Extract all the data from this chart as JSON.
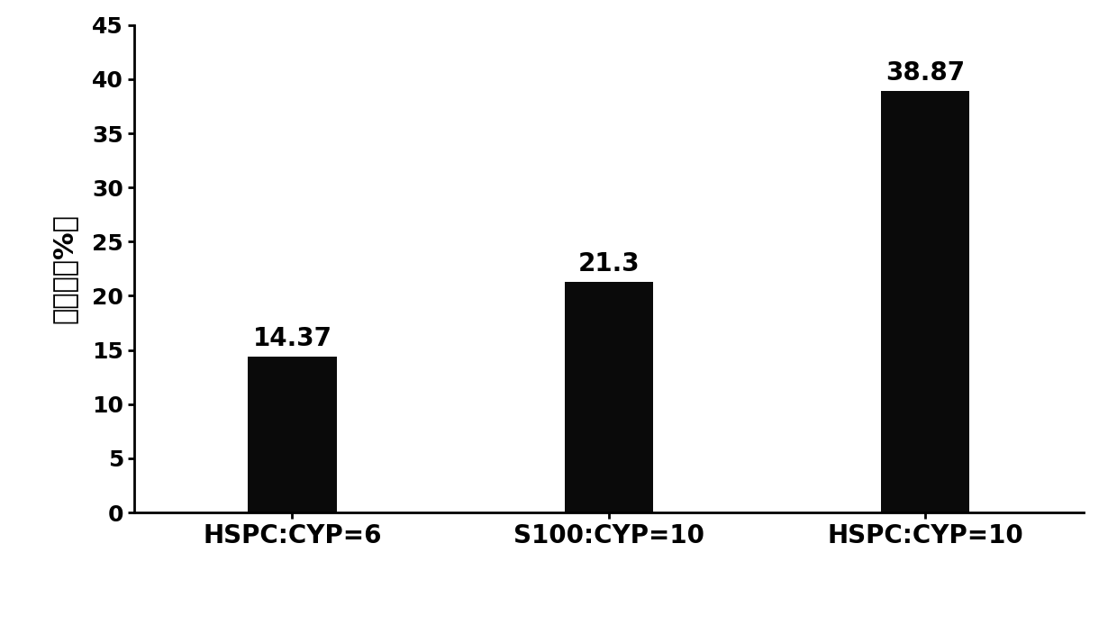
{
  "categories": [
    "HSPC:CYP=6",
    "S100:CYP=10",
    "HSPC:CYP=10"
  ],
  "values": [
    14.37,
    21.3,
    38.87
  ],
  "bar_color": "#0a0a0a",
  "ylabel": "包封率（%）",
  "ylim": [
    0,
    45
  ],
  "yticks": [
    0,
    5,
    10,
    15,
    20,
    25,
    30,
    35,
    40,
    45
  ],
  "bar_labels": [
    "14.37",
    "21.3",
    "38.87"
  ],
  "label_fontsize": 20,
  "tick_fontsize": 18,
  "ylabel_fontsize": 22,
  "xlabel_fontsize": 20,
  "background_color": "#ffffff",
  "bar_width": 0.28,
  "x_positions": [
    0.25,
    0.5,
    0.75
  ]
}
